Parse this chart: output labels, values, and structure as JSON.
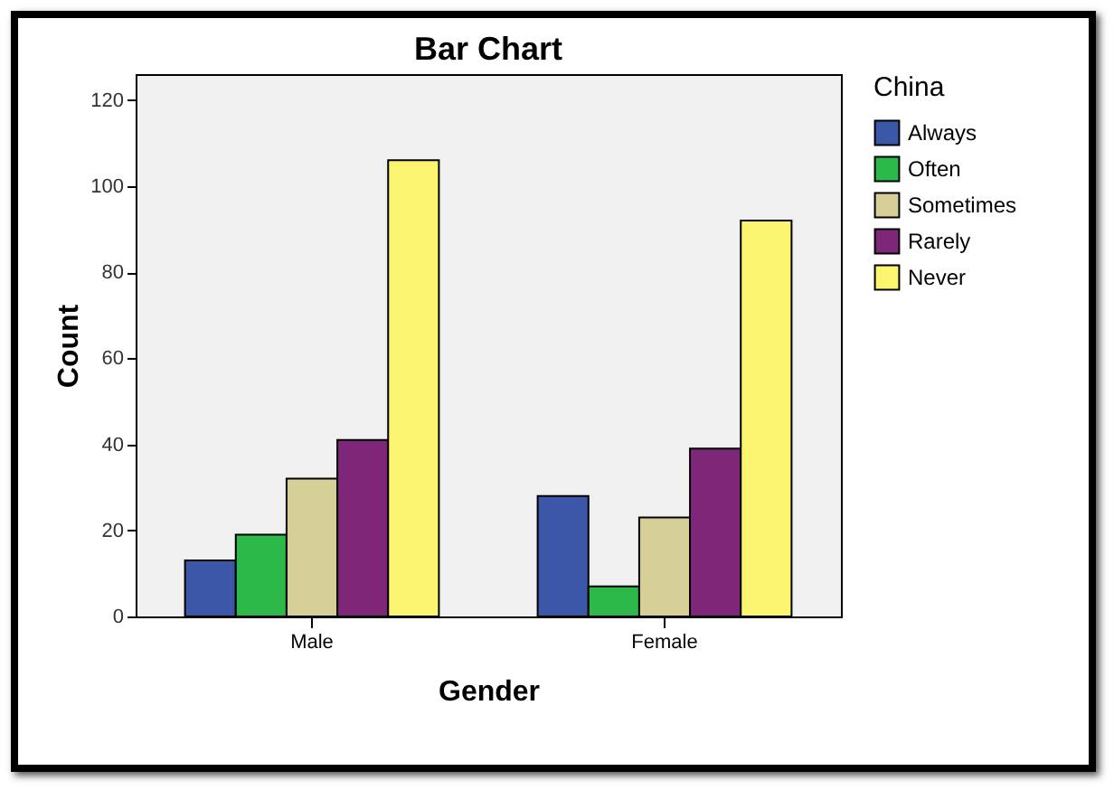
{
  "chart_data": {
    "type": "bar",
    "title": "Bar Chart",
    "xlabel": "Gender",
    "ylabel": "Count",
    "legend_title": "China",
    "categories": [
      "Male",
      "Female"
    ],
    "series": [
      {
        "name": "Always",
        "color": "#3c56a8",
        "values": [
          13,
          28
        ]
      },
      {
        "name": "Often",
        "color": "#2db84a",
        "values": [
          19,
          7
        ]
      },
      {
        "name": "Sometimes",
        "color": "#d6cf97",
        "values": [
          32,
          23
        ]
      },
      {
        "name": "Rarely",
        "color": "#7e2678",
        "values": [
          41,
          39
        ]
      },
      {
        "name": "Never",
        "color": "#fbf46e",
        "values": [
          106,
          92
        ]
      }
    ],
    "ylim": [
      0,
      126
    ],
    "yticks": [
      0,
      20,
      40,
      60,
      80,
      100,
      120
    ],
    "grid": false,
    "legend": "right"
  }
}
